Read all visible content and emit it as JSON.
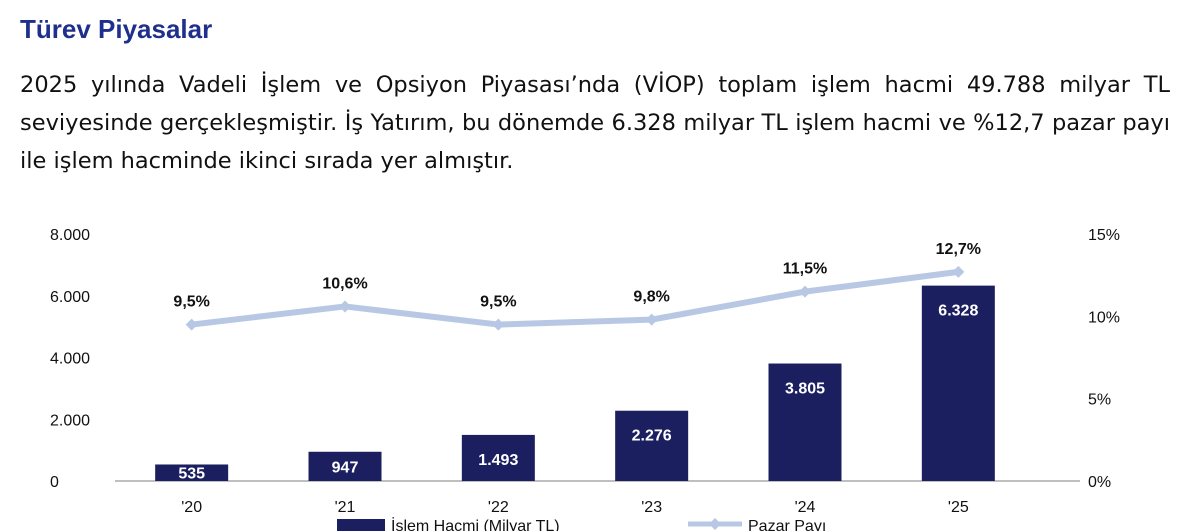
{
  "section": {
    "title": "Türev Piyasalar",
    "paragraph": "2025 yılında Vadeli İşlem ve Opsiyon Piyasası’nda (VİOP) toplam işlem hacmi 49.788 milyar TL seviyesinde gerçekleşmiştir. İş Yatırım, bu dönemde 6.328 milyar TL işlem hacmi ve %12,7 pazar payı ile işlem hacminde ikinci sırada yer almıştır."
  },
  "colors": {
    "bar": "#1b1f60",
    "line": "#b8c8e4",
    "heading": "#1f2f8c"
  },
  "chart_data": {
    "type": "bar",
    "categories": [
      "'20",
      "'21",
      "'22",
      "'23",
      "'24",
      "'25"
    ],
    "series": [
      {
        "name": "İşlem Hacmi (Milyar TL)",
        "type": "bar",
        "axis": "left",
        "values": [
          535,
          947,
          1493,
          2276,
          3805,
          6328
        ],
        "labels": [
          "535",
          "947",
          "1.493",
          "2.276",
          "3.805",
          "6.328"
        ]
      },
      {
        "name": "Pazar Payı",
        "type": "line",
        "axis": "right",
        "values": [
          9.5,
          10.6,
          9.5,
          9.8,
          11.5,
          12.7
        ],
        "labels": [
          "9,5%",
          "10,6%",
          "9,5%",
          "9,8%",
          "11,5%",
          "12,7%"
        ]
      }
    ],
    "left_axis": {
      "ylim": [
        0,
        8000
      ],
      "ticks": [
        0,
        2000,
        4000,
        6000,
        8000
      ],
      "tick_labels": [
        "0",
        "2.000",
        "4.000",
        "6.000",
        "8.000"
      ]
    },
    "right_axis": {
      "ylim": [
        0,
        15
      ],
      "ticks": [
        0,
        5,
        10,
        15
      ],
      "tick_labels": [
        "0%",
        "5%",
        "10%",
        "15%"
      ]
    },
    "grid": false,
    "legend_position": "bottom"
  }
}
